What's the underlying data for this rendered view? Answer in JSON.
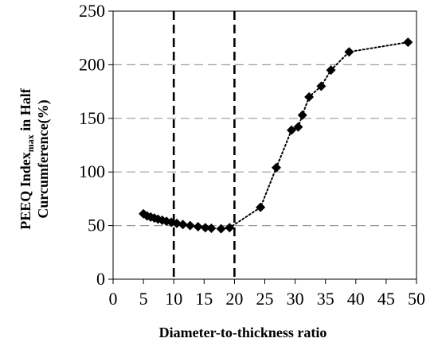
{
  "chart_data": {
    "type": "scatter",
    "title": "",
    "xlabel": "Diameter-to-thickness ratio",
    "ylabel": {
      "line1_main": "PEEQ Index",
      "line1_sub": "max",
      "line1_tail": " in Half",
      "line2": "Curcumference(%)"
    },
    "xlim": [
      0,
      50
    ],
    "ylim": [
      0,
      250
    ],
    "x_ticks": [
      0,
      5,
      10,
      15,
      20,
      25,
      30,
      35,
      40,
      45,
      50
    ],
    "y_ticks": [
      0,
      50,
      100,
      150,
      200,
      250
    ],
    "grid": "horizontal dashed",
    "legend": "none",
    "reference_lines_x": [
      10,
      20
    ],
    "series": [
      {
        "marker": "diamond",
        "line_style": "dotted",
        "color": "#000000",
        "points": [
          [
            5.0,
            61
          ],
          [
            5.6,
            59
          ],
          [
            6.2,
            58
          ],
          [
            6.8,
            57
          ],
          [
            7.4,
            56
          ],
          [
            8.1,
            55
          ],
          [
            8.8,
            54
          ],
          [
            9.6,
            53
          ],
          [
            10.5,
            52
          ],
          [
            11.5,
            51
          ],
          [
            12.7,
            50
          ],
          [
            14.0,
            49
          ],
          [
            15.2,
            48
          ],
          [
            16.2,
            47.5
          ],
          [
            17.8,
            47
          ],
          [
            19.2,
            48
          ],
          [
            24.3,
            67
          ],
          [
            26.9,
            104
          ],
          [
            29.4,
            139
          ],
          [
            30.5,
            142
          ],
          [
            31.2,
            153
          ],
          [
            32.3,
            170
          ],
          [
            34.3,
            180
          ],
          [
            35.9,
            195
          ],
          [
            38.9,
            212
          ],
          [
            48.6,
            221
          ]
        ]
      }
    ]
  },
  "colors": {
    "marker": "#000000",
    "grid": "#9a9a9a",
    "reference_line": "#000000",
    "axis": "#000000"
  }
}
